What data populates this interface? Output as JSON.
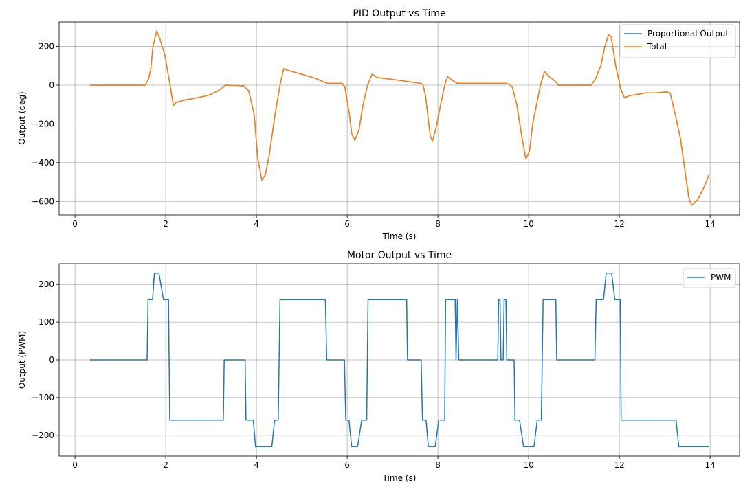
{
  "chart_data": [
    {
      "type": "line",
      "title": "PID Output vs Time",
      "xlabel": "Time (s)",
      "ylabel": "Output (deg)",
      "xlim": [
        -0.35,
        14.65
      ],
      "ylim": [
        -670,
        326
      ],
      "xticks": [
        0,
        2,
        4,
        6,
        8,
        10,
        12,
        14
      ],
      "yticks": [
        -600,
        -400,
        -200,
        0,
        200
      ],
      "ytick_labels": [
        "−600",
        "−400",
        "−200",
        "0",
        "200"
      ],
      "grid": true,
      "legend_position": "top-right",
      "x": [
        0.33,
        1.55,
        1.62,
        1.67,
        1.72,
        1.8,
        1.87,
        1.98,
        2.08,
        2.17,
        2.22,
        2.29,
        2.45,
        2.59,
        2.8,
        2.97,
        3.15,
        3.32,
        3.6,
        3.73,
        3.83,
        3.95,
        4.03,
        4.12,
        4.2,
        4.29,
        4.41,
        4.52,
        4.6,
        4.71,
        5.02,
        5.3,
        5.55,
        5.89,
        5.95,
        6.05,
        6.1,
        6.17,
        6.26,
        6.35,
        6.45,
        6.55,
        6.65,
        7.14,
        7.6,
        7.67,
        7.73,
        7.83,
        7.88,
        7.97,
        8.06,
        8.15,
        8.21,
        8.29,
        8.42,
        8.95,
        9.48,
        9.58,
        9.64,
        9.74,
        9.86,
        9.94,
        10.02,
        10.09,
        10.26,
        10.35,
        10.47,
        10.59,
        10.65,
        11.38,
        11.47,
        11.59,
        11.68,
        11.76,
        11.82,
        11.92,
        12.03,
        12.11,
        12.21,
        12.59,
        12.82,
        13.05,
        13.12,
        13.23,
        13.35,
        13.44,
        13.53,
        13.59,
        13.73,
        13.88,
        13.97
      ],
      "series": [
        {
          "name": "Proportional Output",
          "color": "#1f77b4",
          "values": [
            0,
            0,
            30,
            80,
            200,
            280,
            240,
            155,
            20,
            -105,
            -90,
            -85,
            -75,
            -70,
            -60,
            -50,
            -30,
            0,
            -2,
            -5,
            -30,
            -150,
            -380,
            -490,
            -460,
            -350,
            -150,
            0,
            85,
            75,
            55,
            35,
            10,
            10,
            -10,
            -150,
            -250,
            -285,
            -230,
            -100,
            0,
            57,
            40,
            25,
            10,
            5,
            -60,
            -260,
            -290,
            -210,
            -100,
            0,
            45,
            30,
            10,
            10,
            10,
            5,
            -10,
            -100,
            -280,
            -380,
            -340,
            -200,
            0,
            70,
            40,
            20,
            0,
            0,
            30,
            100,
            200,
            260,
            250,
            100,
            -20,
            -65,
            -55,
            -40,
            -40,
            -35,
            -40,
            -150,
            -280,
            -430,
            -580,
            -620,
            -590,
            -520,
            -465
          ]
        },
        {
          "name": "Total",
          "color": "#ff7f0e",
          "values": [
            0,
            0,
            30,
            80,
            200,
            280,
            240,
            155,
            20,
            -105,
            -90,
            -85,
            -75,
            -70,
            -60,
            -50,
            -30,
            0,
            -2,
            -5,
            -30,
            -150,
            -380,
            -490,
            -460,
            -350,
            -150,
            0,
            85,
            75,
            55,
            35,
            10,
            10,
            -10,
            -150,
            -250,
            -285,
            -230,
            -100,
            0,
            57,
            40,
            25,
            10,
            5,
            -60,
            -260,
            -290,
            -210,
            -100,
            0,
            45,
            30,
            10,
            10,
            10,
            5,
            -10,
            -100,
            -280,
            -380,
            -340,
            -200,
            0,
            70,
            40,
            20,
            0,
            0,
            30,
            100,
            200,
            260,
            250,
            100,
            -20,
            -65,
            -55,
            -40,
            -40,
            -35,
            -40,
            -150,
            -280,
            -430,
            -580,
            -620,
            -590,
            -520,
            -465
          ]
        }
      ]
    },
    {
      "type": "line",
      "title": "Motor Output vs Time",
      "xlabel": "Time (s)",
      "ylabel": "Output (PWM)",
      "xlim": [
        -0.35,
        14.65
      ],
      "ylim": [
        -255,
        255
      ],
      "xticks": [
        0,
        2,
        4,
        6,
        8,
        10,
        12,
        14
      ],
      "yticks": [
        -200,
        -100,
        0,
        100,
        200
      ],
      "ytick_labels": [
        "−200",
        "−100",
        "0",
        "100",
        "200"
      ],
      "grid": true,
      "legend_position": "top-right",
      "x": [
        0.33,
        1.59,
        1.61,
        1.71,
        1.75,
        1.85,
        1.95,
        2.06,
        2.09,
        3.27,
        3.29,
        3.75,
        3.77,
        3.93,
        3.98,
        4.34,
        4.4,
        4.48,
        4.52,
        5.52,
        5.55,
        5.94,
        5.97,
        6.04,
        6.1,
        6.23,
        6.32,
        6.43,
        6.46,
        7.31,
        7.33,
        7.63,
        7.66,
        7.74,
        7.79,
        7.94,
        8.02,
        8.15,
        8.17,
        8.38,
        8.4,
        8.43,
        8.46,
        9.32,
        9.34,
        9.37,
        9.39,
        9.44,
        9.46,
        9.5,
        9.52,
        9.68,
        9.7,
        9.8,
        9.89,
        10.12,
        10.19,
        10.28,
        10.32,
        10.6,
        10.62,
        11.46,
        11.49,
        11.65,
        11.71,
        11.83,
        11.9,
        12.02,
        12.04,
        13.25,
        13.31,
        13.98
      ],
      "series": [
        {
          "name": "PWM",
          "color": "#1f77b4",
          "values": [
            0,
            0,
            160,
            160,
            230,
            230,
            160,
            160,
            -160,
            -160,
            0,
            0,
            -160,
            -160,
            -230,
            -230,
            -160,
            -160,
            160,
            160,
            0,
            0,
            -160,
            -160,
            -230,
            -230,
            -160,
            -160,
            160,
            160,
            0,
            0,
            -160,
            -160,
            -230,
            -230,
            -160,
            -160,
            160,
            160,
            0,
            160,
            0,
            0,
            160,
            160,
            0,
            0,
            160,
            160,
            0,
            0,
            -160,
            -160,
            -230,
            -230,
            -160,
            -160,
            160,
            160,
            0,
            0,
            160,
            160,
            230,
            230,
            160,
            160,
            -160,
            -160,
            -230,
            -230
          ]
        }
      ]
    }
  ]
}
